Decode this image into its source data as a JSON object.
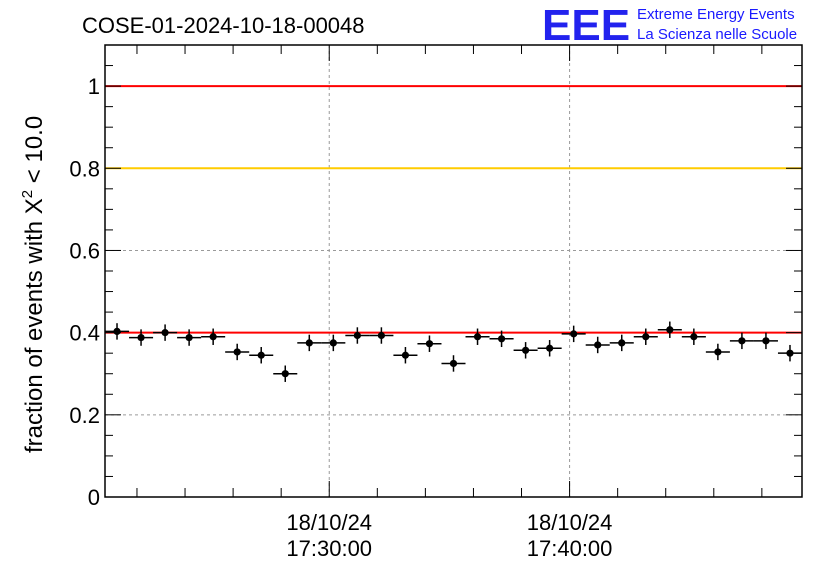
{
  "chart_data": {
    "type": "scatter",
    "title": "COSE-01-2024-10-18-00048",
    "ylabel": "fraction of events with X² < 10.0",
    "ylabel_parts": {
      "prefix": "fraction of events with ",
      "chi": "X",
      "sup": "2",
      "suffix": " < 10.0"
    },
    "xlabel": "",
    "ylim": [
      0,
      1.1
    ],
    "x_unit": "minutes after 18/10/24 17:20:00",
    "xlim": [
      0,
      29
    ],
    "yticks": [
      {
        "value": 0,
        "label": "0"
      },
      {
        "value": 0.2,
        "label": "0.2"
      },
      {
        "value": 0.4,
        "label": "0.4"
      },
      {
        "value": 0.6,
        "label": "0.6"
      },
      {
        "value": 0.8,
        "label": "0.8"
      },
      {
        "value": 1,
        "label": "1"
      }
    ],
    "xticks_major": [
      {
        "value": 9.33,
        "date": "18/10/24",
        "time": "17:30:00"
      },
      {
        "value": 19.33,
        "date": "18/10/24",
        "time": "17:40:00"
      }
    ],
    "reference_lines": [
      {
        "y": 1.0,
        "color": "#ff0000"
      },
      {
        "y": 0.8,
        "color": "#ffcc00"
      },
      {
        "y": 0.4,
        "color": "#ff0000"
      }
    ],
    "grid": true,
    "x_half_width": 0.5,
    "points": [
      {
        "x": 0.5,
        "y": 0.403,
        "err": 0.02
      },
      {
        "x": 1.5,
        "y": 0.388,
        "err": 0.02
      },
      {
        "x": 2.5,
        "y": 0.4,
        "err": 0.02
      },
      {
        "x": 3.5,
        "y": 0.388,
        "err": 0.02
      },
      {
        "x": 4.5,
        "y": 0.39,
        "err": 0.02
      },
      {
        "x": 5.5,
        "y": 0.353,
        "err": 0.02
      },
      {
        "x": 6.5,
        "y": 0.345,
        "err": 0.02
      },
      {
        "x": 7.5,
        "y": 0.3,
        "err": 0.02
      },
      {
        "x": 8.5,
        "y": 0.375,
        "err": 0.02
      },
      {
        "x": 9.5,
        "y": 0.375,
        "err": 0.02
      },
      {
        "x": 10.5,
        "y": 0.393,
        "err": 0.02
      },
      {
        "x": 11.5,
        "y": 0.393,
        "err": 0.02
      },
      {
        "x": 12.5,
        "y": 0.345,
        "err": 0.02
      },
      {
        "x": 13.5,
        "y": 0.373,
        "err": 0.02
      },
      {
        "x": 14.5,
        "y": 0.325,
        "err": 0.02
      },
      {
        "x": 15.5,
        "y": 0.39,
        "err": 0.02
      },
      {
        "x": 16.5,
        "y": 0.385,
        "err": 0.02
      },
      {
        "x": 17.5,
        "y": 0.357,
        "err": 0.02
      },
      {
        "x": 18.5,
        "y": 0.362,
        "err": 0.02
      },
      {
        "x": 19.5,
        "y": 0.397,
        "err": 0.02
      },
      {
        "x": 20.5,
        "y": 0.37,
        "err": 0.02
      },
      {
        "x": 21.5,
        "y": 0.375,
        "err": 0.02
      },
      {
        "x": 22.5,
        "y": 0.39,
        "err": 0.02
      },
      {
        "x": 23.5,
        "y": 0.407,
        "err": 0.02
      },
      {
        "x": 24.5,
        "y": 0.39,
        "err": 0.02
      },
      {
        "x": 25.5,
        "y": 0.353,
        "err": 0.02
      },
      {
        "x": 26.5,
        "y": 0.38,
        "err": 0.02
      },
      {
        "x": 27.5,
        "y": 0.38,
        "err": 0.02
      },
      {
        "x": 28.5,
        "y": 0.35,
        "err": 0.02
      }
    ]
  },
  "logo": {
    "mark": "EEE",
    "line1": "Extreme Energy Events",
    "line2": "La Scienza nelle Scuole",
    "color": "#1a1aff"
  }
}
